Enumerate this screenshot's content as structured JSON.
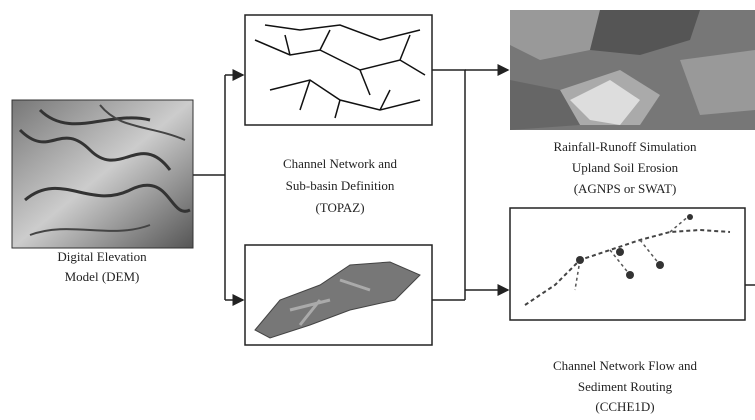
{
  "nodes": [
    {
      "label": [
        "Digital Elevation",
        "Model (DEM)"
      ]
    },
    {
      "label": [
        "Channel Network and",
        "Sub-basin Definition",
        "(TOPAZ)"
      ]
    },
    {
      "label": [
        "Rainfall-Runoff Simulation",
        "Upland Soil Erosion",
        "(AGNPS or SWAT)"
      ]
    },
    {
      "label": [
        "Channel Network Flow and",
        "Sediment Routing",
        "(CCHE1D)"
      ]
    }
  ]
}
